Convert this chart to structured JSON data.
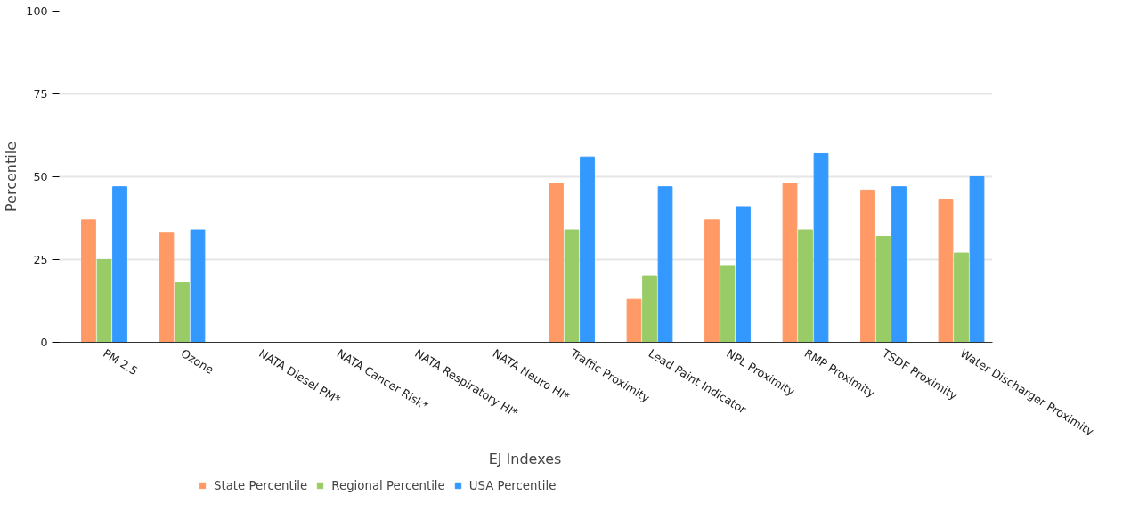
{
  "chart_data": {
    "type": "bar",
    "xlabel": "EJ Indexes",
    "ylabel": "Percentile",
    "categories": [
      "PM 2.5",
      "Ozone",
      "NATA Diesel PM*",
      "NATA Cancer Risk*",
      "NATA Respiratory HI*",
      "NATA Neuro HI*",
      "Traffic Proximity",
      "Lead Paint Indicator",
      "NPL Proximity",
      "RMP Proximity",
      "TSDF Proximity",
      "Water Discharger Proximity"
    ],
    "series": [
      {
        "name": "State Percentile",
        "color": "#ff9966",
        "values": [
          37,
          33,
          null,
          null,
          null,
          null,
          48,
          13,
          37,
          48,
          46,
          43
        ]
      },
      {
        "name": "Regional Percentile",
        "color": "#99cc66",
        "values": [
          25,
          18,
          null,
          null,
          null,
          null,
          34,
          20,
          23,
          34,
          32,
          27
        ]
      },
      {
        "name": "USA Percentile",
        "color": "#3399ff",
        "values": [
          47,
          34,
          null,
          null,
          null,
          null,
          56,
          47,
          41,
          57,
          47,
          50
        ]
      }
    ],
    "ylim": [
      0,
      100
    ],
    "yticks": [
      0,
      25,
      50,
      75,
      100
    ],
    "grid": "y",
    "legend": "bottom left"
  }
}
